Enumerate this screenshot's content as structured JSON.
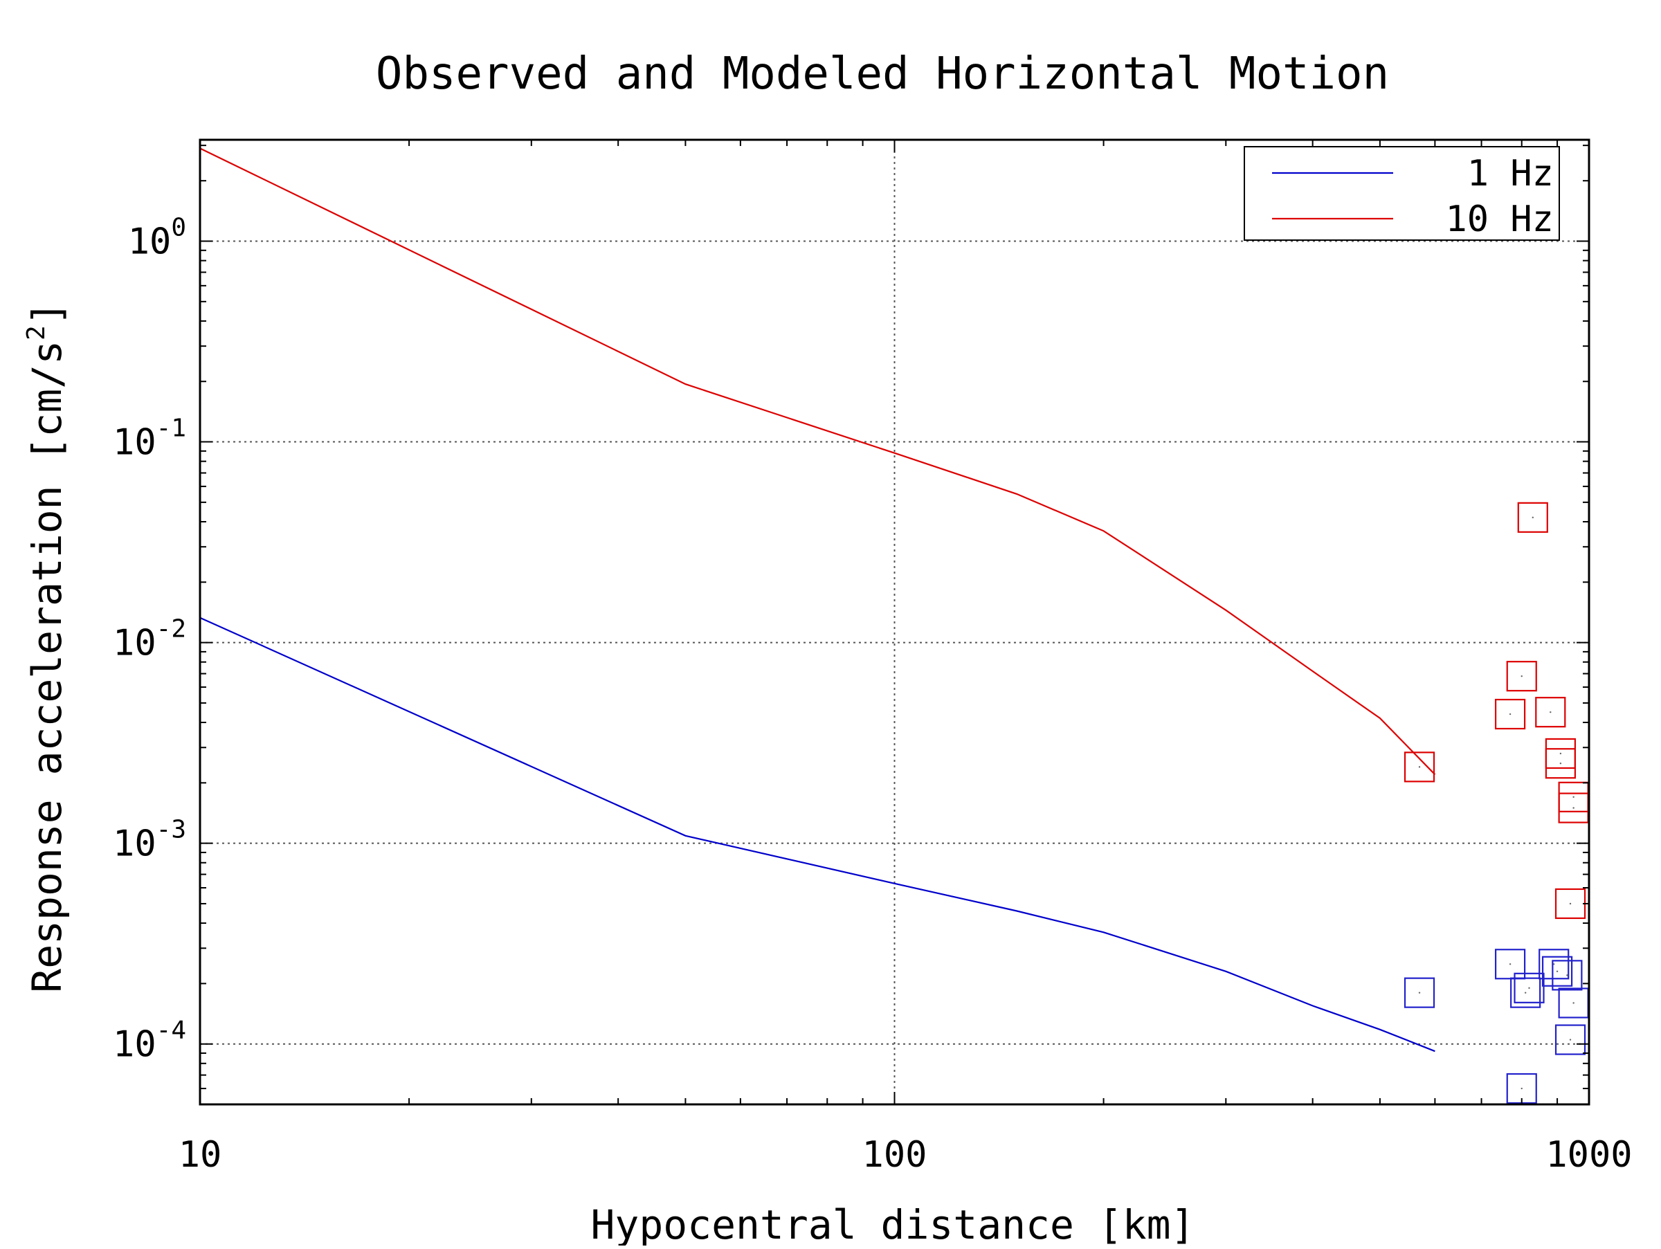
{
  "chart_data": {
    "type": "scatter",
    "title": "Observed and Modeled Horizontal Motion",
    "xlabel": "Hypocentral distance [km]",
    "ylabel": "Response acceleration [cm/s",
    "ylabel_sup": "2",
    "ylabel_end": "]",
    "xscale": "log",
    "yscale": "log",
    "xlim": [
      10,
      1000
    ],
    "ylim": [
      5e-05,
      3.2
    ],
    "grid": true,
    "legend_position": "top-right",
    "x_ticks": [
      {
        "value": 10,
        "label": "10"
      },
      {
        "value": 100,
        "label": "100"
      },
      {
        "value": 1000,
        "label": "1000"
      }
    ],
    "y_ticks": [
      {
        "value": 1,
        "base": "10",
        "exp": "0"
      },
      {
        "value": 0.1,
        "base": "10",
        "exp": "-1"
      },
      {
        "value": 0.01,
        "base": "10",
        "exp": "-2"
      },
      {
        "value": 0.001,
        "base": "10",
        "exp": "-3"
      },
      {
        "value": 0.0001,
        "base": "10",
        "exp": "-4"
      }
    ],
    "series": [
      {
        "name": "1 Hz",
        "color": "#0000cc",
        "kind": "line",
        "x": [
          10,
          50,
          100,
          150,
          200,
          300,
          400,
          500,
          600
        ],
        "y": [
          0.0133,
          0.00109,
          0.00063,
          0.00046,
          0.00036,
          0.00023,
          0.000155,
          0.000118,
          9.2e-05
        ]
      },
      {
        "name": "10 Hz",
        "color": "#dd0000",
        "kind": "line",
        "x": [
          10,
          50,
          100,
          150,
          200,
          300,
          400,
          500,
          600
        ],
        "y": [
          2.9,
          0.194,
          0.088,
          0.055,
          0.036,
          0.0145,
          0.0072,
          0.0042,
          0.0022
        ]
      }
    ],
    "observations": [
      {
        "color": "#dd0000",
        "kind": "squares",
        "x": [
          570,
          830,
          800,
          770,
          880,
          910,
          910,
          950,
          950,
          940
        ],
        "y": [
          0.0024,
          0.042,
          0.0068,
          0.0044,
          0.0045,
          0.0028,
          0.0025,
          0.0017,
          0.0015,
          0.0005
        ]
      },
      {
        "color": "#2222cc",
        "kind": "squares",
        "x": [
          570,
          770,
          810,
          820,
          890,
          900,
          930,
          950,
          940,
          800
        ],
        "y": [
          0.00018,
          0.00025,
          0.00018,
          0.00019,
          0.00025,
          0.00023,
          0.00022,
          0.00016,
          0.000105,
          6e-05
        ]
      }
    ]
  }
}
